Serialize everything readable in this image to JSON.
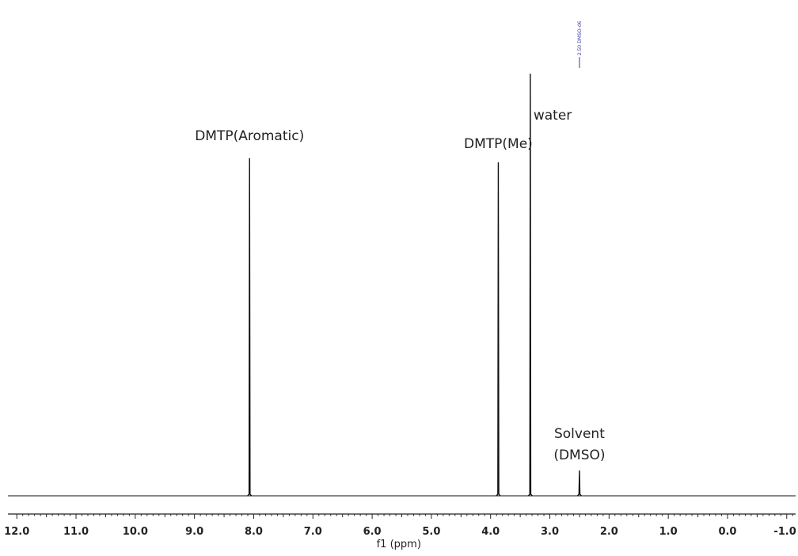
{
  "chart_data": {
    "type": "line",
    "xlabel": "f1 (ppm)",
    "xlim": [
      12.15,
      -1.15
    ],
    "x_reversed": true,
    "ylim": [
      0,
      100
    ],
    "grid": false,
    "line_color": "#111111",
    "ref_color": "#3a3aa8",
    "major_ticks": [
      12.0,
      11.0,
      10.0,
      9.0,
      8.0,
      7.0,
      6.0,
      5.0,
      4.0,
      3.0,
      2.0,
      1.0,
      0.0,
      -1.0
    ],
    "tick_labels": [
      "12.0",
      "11.0",
      "10.0",
      "9.0",
      "8.0",
      "7.0",
      "6.0",
      "5.0",
      "4.0",
      "3.0",
      "2.0",
      "1.0",
      "0.0",
      "-1.0"
    ],
    "peaks": [
      {
        "ppm": 8.07,
        "height": 80
      },
      {
        "ppm": 3.87,
        "height": 79
      },
      {
        "ppm": 3.33,
        "height": 100
      },
      {
        "ppm": 2.5,
        "height": 6
      }
    ],
    "annotations": [
      {
        "text": "DMTP(Aromatic)",
        "ppm": 8.07
      },
      {
        "text": "DMTP(Me)",
        "ppm": 3.87
      },
      {
        "text": "water",
        "ppm": 3.33
      },
      {
        "text": "Solvent",
        "ppm": 2.5
      },
      {
        "text": "(DMSO)",
        "ppm": 2.5
      }
    ],
    "reference_marker": {
      "ppm": 2.5,
      "text": "2.50 DMSO-d6"
    }
  }
}
